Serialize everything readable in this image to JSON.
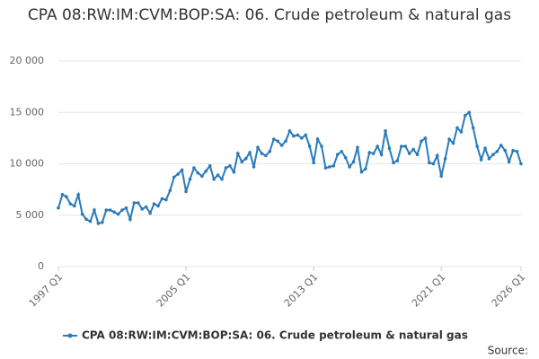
{
  "chart_data": {
    "type": "line",
    "title": "CPA 08:RW:IM:CVM:BOP:SA: 06. Crude petroleum & natural gas",
    "categories": [
      "1997 Q1",
      null,
      null,
      null,
      null,
      null,
      null,
      null,
      null,
      null,
      null,
      null,
      null,
      null,
      null,
      null,
      null,
      null,
      null,
      null,
      null,
      null,
      null,
      null,
      null,
      null,
      null,
      null,
      null,
      null,
      null,
      null,
      "2005 Q1",
      null,
      null,
      null,
      null,
      null,
      null,
      null,
      null,
      null,
      null,
      null,
      null,
      null,
      null,
      null,
      null,
      null,
      null,
      null,
      null,
      null,
      null,
      null,
      null,
      null,
      null,
      null,
      null,
      null,
      null,
      null,
      "2013 Q1",
      null,
      null,
      null,
      null,
      null,
      null,
      null,
      null,
      null,
      null,
      null,
      null,
      null,
      null,
      null,
      null,
      null,
      null,
      null,
      null,
      null,
      null,
      null,
      null,
      null,
      null,
      null,
      null,
      null,
      null,
      null,
      "2021 Q1",
      null,
      null,
      null,
      null,
      null,
      null,
      null,
      null,
      null,
      null,
      null,
      null,
      null,
      null,
      null,
      null,
      null,
      null,
      null,
      "2026 Q1"
    ],
    "series": [
      {
        "name": "CPA 08:RW:IM:CVM:BOP:SA: 06. Crude petroleum & natural gas",
        "color": "#2b7bb9",
        "values": [
          5700,
          7000,
          6800,
          6100,
          5900,
          7000,
          5100,
          4600,
          4400,
          5500,
          4200,
          4300,
          5500,
          5500,
          5300,
          5100,
          5500,
          5700,
          4600,
          6200,
          6200,
          5600,
          5800,
          5200,
          6100,
          5900,
          6600,
          6500,
          7400,
          8700,
          9000,
          9400,
          7300,
          8500,
          9600,
          9100,
          8800,
          9300,
          9800,
          8500,
          8900,
          8500,
          9600,
          9800,
          9200,
          11000,
          10200,
          10500,
          11100,
          9700,
          11600,
          11000,
          10800,
          11200,
          12400,
          12200,
          11800,
          12200,
          13200,
          12700,
          12800,
          12500,
          12800,
          11700,
          10100,
          12400,
          11700,
          9600,
          9700,
          9800,
          10900,
          11200,
          10600,
          9700,
          10200,
          11600,
          9200,
          9500,
          11100,
          11000,
          11700,
          10900,
          13200,
          11500,
          10100,
          10300,
          11700,
          11700,
          11000,
          11400,
          10900,
          12200,
          12500,
          10100,
          10000,
          10800,
          8800,
          10500,
          12400,
          12000,
          13500,
          13100,
          14700,
          15000,
          13500,
          11700,
          10400,
          11500,
          10500,
          10900,
          11200,
          11800,
          11300,
          10200,
          11300,
          11200,
          10000
        ]
      }
    ],
    "ylim": [
      0,
      20000
    ],
    "yticks": [
      0,
      {
        "value": 5000,
        "label": "5 000"
      },
      {
        "value": 10000,
        "label": "10 000"
      },
      {
        "value": 15000,
        "label": "15 000"
      },
      {
        "value": 20000,
        "label": "20 000"
      }
    ],
    "grid": true,
    "source": "Source:"
  }
}
